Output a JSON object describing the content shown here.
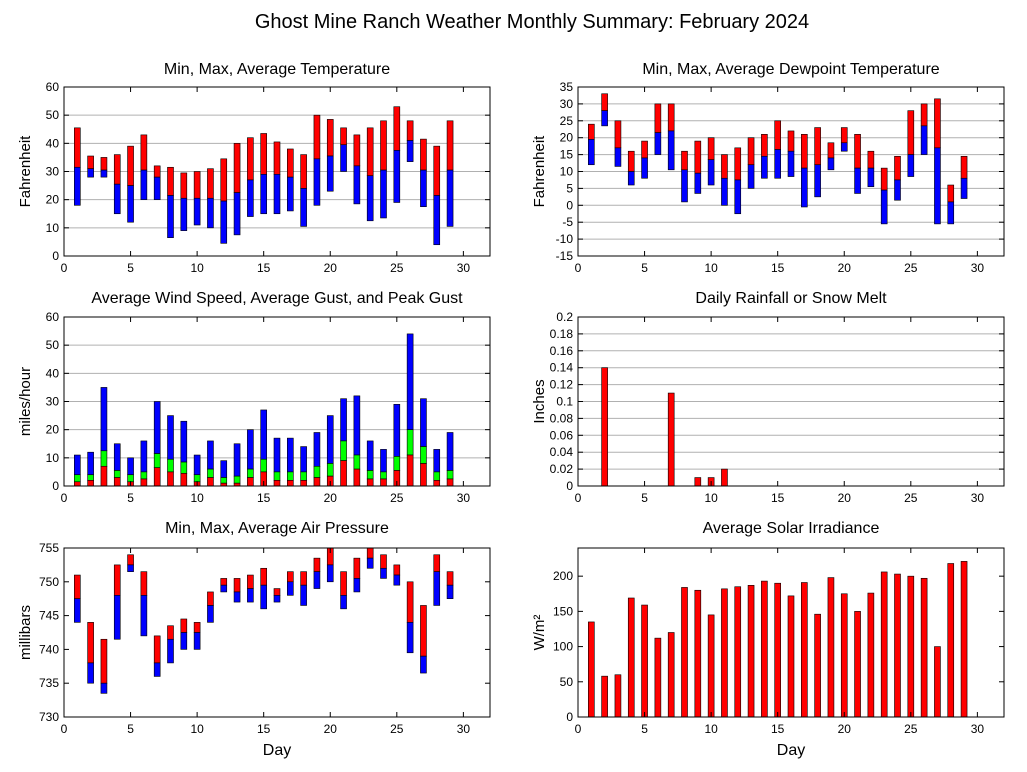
{
  "page_title": "Ghost Mine Ranch Weather Monthly Summary: February 2024",
  "colors": {
    "red": "#ff0000",
    "blue": "#0000ff",
    "green": "#00ff00",
    "frame": "#000000",
    "grid": "#b0b0b0"
  },
  "chart_data": [
    {
      "id": "temp",
      "type": "bar",
      "title": "Min, Max, Average Temperature",
      "xlabel": "",
      "ylabel": "Fahrenheit",
      "xlim": [
        0,
        32
      ],
      "ylim": [
        0,
        60
      ],
      "xticks": [
        0,
        5,
        10,
        15,
        20,
        25,
        30
      ],
      "yticks": [
        0,
        10,
        20,
        30,
        40,
        50,
        60
      ],
      "grid": true,
      "style": "range",
      "x": [
        1,
        2,
        3,
        4,
        5,
        6,
        7,
        8,
        9,
        10,
        11,
        12,
        13,
        14,
        15,
        16,
        17,
        18,
        19,
        20,
        21,
        22,
        23,
        24,
        25,
        26,
        27,
        28,
        29
      ],
      "series": [
        {
          "name": "Max",
          "color": "#ff0000",
          "values": [
            45.5,
            35.5,
            35,
            36,
            39,
            43,
            32,
            31.5,
            29.5,
            30,
            31,
            34.5,
            40,
            42,
            43.5,
            40.5,
            38,
            36,
            50,
            48.5,
            45.5,
            43,
            45.5,
            48,
            53,
            48,
            41.5,
            39,
            48
          ]
        },
        {
          "name": "Average",
          "color": "#0000ff",
          "values": [
            31.5,
            31,
            30.5,
            25.5,
            25,
            30.5,
            28,
            21.5,
            20.5,
            20.5,
            20.5,
            19.5,
            22.5,
            27,
            29,
            29,
            28,
            24,
            34.5,
            35.5,
            39.5,
            32,
            28.5,
            30.5,
            37.5,
            41,
            30.5,
            21.5,
            30.5
          ]
        },
        {
          "name": "Min",
          "color": "#0000ff",
          "values": [
            18,
            28,
            28,
            15,
            12,
            20,
            20,
            6.5,
            9,
            11,
            10,
            4.5,
            7.5,
            14,
            15,
            15,
            16,
            10.5,
            18,
            23,
            30,
            18.5,
            12.5,
            13.5,
            19,
            33.5,
            17.5,
            4,
            10.5
          ]
        }
      ]
    },
    {
      "id": "dew",
      "type": "bar",
      "title": "Min, Max, Average Dewpoint Temperature",
      "xlabel": "",
      "ylabel": "Fahrenheit",
      "xlim": [
        0,
        32
      ],
      "ylim": [
        -15,
        35
      ],
      "xticks": [
        0,
        5,
        10,
        15,
        20,
        25,
        30
      ],
      "yticks": [
        -15,
        -10,
        -5,
        0,
        5,
        10,
        15,
        20,
        25,
        30,
        35
      ],
      "grid": true,
      "style": "range",
      "x": [
        1,
        2,
        3,
        4,
        5,
        6,
        7,
        8,
        9,
        10,
        11,
        12,
        13,
        14,
        15,
        16,
        17,
        18,
        19,
        20,
        21,
        22,
        23,
        24,
        25,
        26,
        27,
        28,
        29
      ],
      "series": [
        {
          "name": "Max",
          "color": "#ff0000",
          "values": [
            24,
            33,
            25,
            16,
            19,
            30,
            30,
            16,
            19,
            20,
            15,
            17,
            20,
            21,
            25,
            22,
            21,
            23,
            18.5,
            23,
            21,
            16,
            11,
            14.5,
            28,
            30,
            31.5,
            6,
            14.5
          ]
        },
        {
          "name": "Average",
          "color": "#0000ff",
          "values": [
            19.5,
            28,
            17,
            10,
            14,
            21.5,
            22,
            10.5,
            9.5,
            13.5,
            8,
            7.5,
            12,
            14.5,
            16.5,
            16,
            11,
            12,
            14,
            18.5,
            11,
            11,
            4.5,
            7.5,
            15,
            23.5,
            17,
            1,
            8
          ]
        },
        {
          "name": "Min",
          "color": "#0000ff",
          "values": [
            12,
            23.5,
            11.5,
            6,
            8,
            15,
            10.5,
            1,
            3.5,
            6,
            0,
            -2.5,
            5,
            8,
            8,
            8.5,
            -0.5,
            2.5,
            10.5,
            16,
            3.5,
            5.5,
            -5.5,
            1.5,
            8.5,
            15,
            -5.5,
            -5.5,
            2
          ]
        }
      ]
    },
    {
      "id": "wind",
      "type": "bar",
      "title": "Average Wind Speed, Average Gust, and Peak Gust",
      "xlabel": "",
      "ylabel": "miles/hour",
      "xlim": [
        0,
        32
      ],
      "ylim": [
        0,
        60
      ],
      "xticks": [
        0,
        5,
        10,
        15,
        20,
        25,
        30
      ],
      "yticks": [
        0,
        10,
        20,
        30,
        40,
        50,
        60
      ],
      "grid": true,
      "style": "stack",
      "x": [
        1,
        2,
        3,
        4,
        5,
        6,
        7,
        8,
        9,
        10,
        11,
        12,
        13,
        14,
        15,
        16,
        17,
        18,
        19,
        20,
        21,
        22,
        23,
        24,
        25,
        26,
        27,
        28,
        29
      ],
      "series": [
        {
          "name": "Peak Gust",
          "color": "#0000ff",
          "values": [
            11,
            12,
            35,
            15,
            10,
            16,
            30,
            25,
            23,
            11,
            16,
            9,
            15,
            20,
            27,
            17,
            17,
            14,
            19,
            25,
            31,
            32,
            16,
            13,
            29,
            54,
            31,
            13,
            19
          ]
        },
        {
          "name": "Average Gust",
          "color": "#00ff00",
          "values": [
            4,
            4,
            12.5,
            5.5,
            4,
            5,
            11.5,
            9.5,
            8.5,
            4,
            6,
            3,
            3.5,
            6,
            9.5,
            5,
            5,
            5,
            7,
            8,
            16,
            11,
            5.5,
            5,
            10.5,
            20,
            14,
            5,
            5.5
          ]
        },
        {
          "name": "Average Wind Speed",
          "color": "#ff0000",
          "values": [
            1.5,
            2,
            7,
            3,
            1.5,
            2.5,
            6.5,
            5,
            4.5,
            1.5,
            3,
            1,
            1,
            3,
            5,
            2,
            2,
            2,
            3,
            3.5,
            9,
            6,
            2.5,
            2.5,
            5.5,
            11,
            8,
            2,
            2.5
          ]
        }
      ]
    },
    {
      "id": "rain",
      "type": "bar",
      "title": "Daily Rainfall or Snow Melt",
      "xlabel": "",
      "ylabel": "Inches",
      "xlim": [
        0,
        32
      ],
      "ylim": [
        0,
        0.2
      ],
      "xticks": [
        0,
        5,
        10,
        15,
        20,
        25,
        30
      ],
      "yticks": [
        0,
        0.02,
        0.04,
        0.06,
        0.08,
        0.1,
        0.12,
        0.14,
        0.16,
        0.18,
        0.2
      ],
      "grid": true,
      "style": "simple",
      "x": [
        2,
        7,
        9,
        10,
        11
      ],
      "series": [
        {
          "name": "Rainfall",
          "color": "#ff0000",
          "values": [
            0.14,
            0.11,
            0.01,
            0.01,
            0.02
          ]
        }
      ]
    },
    {
      "id": "press",
      "type": "bar",
      "title": "Min, Max, Average Air Pressure",
      "xlabel": "Day",
      "ylabel": "millibars",
      "xlim": [
        0,
        32
      ],
      "ylim": [
        730,
        755
      ],
      "xticks": [
        0,
        5,
        10,
        15,
        20,
        25,
        30
      ],
      "yticks": [
        730,
        735,
        740,
        745,
        750,
        755
      ],
      "grid": false,
      "style": "range",
      "x": [
        1,
        2,
        3,
        4,
        5,
        6,
        7,
        8,
        9,
        10,
        11,
        12,
        13,
        14,
        15,
        16,
        17,
        18,
        19,
        20,
        21,
        22,
        23,
        24,
        25,
        26,
        27,
        28,
        29
      ],
      "series": [
        {
          "name": "Max",
          "color": "#ff0000",
          "values": [
            751,
            744,
            741.5,
            752.5,
            754,
            751.5,
            742,
            743.5,
            744.5,
            744,
            748.5,
            750.5,
            750.5,
            751,
            752,
            749,
            751.5,
            751.5,
            753.5,
            755,
            751.5,
            753.5,
            755,
            754,
            752.5,
            750,
            746.5,
            754,
            751.5
          ]
        },
        {
          "name": "Average",
          "color": "#0000ff",
          "values": [
            747.5,
            738,
            735,
            748,
            752.5,
            748,
            738,
            741.5,
            742.5,
            742.5,
            746.5,
            749.5,
            748.5,
            749,
            749.5,
            748,
            750,
            749.5,
            751.5,
            752.5,
            748,
            750.5,
            753.5,
            752,
            751,
            744,
            739,
            751.5,
            749.5
          ]
        },
        {
          "name": "Min",
          "color": "#0000ff",
          "values": [
            744,
            735,
            733.5,
            741.5,
            751.5,
            742,
            736,
            738,
            740,
            740,
            744,
            748.5,
            747,
            747,
            746,
            747,
            748,
            746.5,
            749,
            750,
            746,
            748.5,
            752,
            750.5,
            749.5,
            739.5,
            736.5,
            746.5,
            747.5
          ]
        }
      ]
    },
    {
      "id": "solar",
      "type": "bar",
      "title": "Average Solar Irradiance",
      "xlabel": "Day",
      "ylabel": "W/m²",
      "xlim": [
        0,
        32
      ],
      "ylim": [
        0,
        240
      ],
      "xticks": [
        0,
        5,
        10,
        15,
        20,
        25,
        30
      ],
      "yticks": [
        0,
        50,
        100,
        150,
        200
      ],
      "grid": false,
      "style": "simple",
      "x": [
        1,
        2,
        3,
        4,
        5,
        6,
        7,
        8,
        9,
        10,
        11,
        12,
        13,
        14,
        15,
        16,
        17,
        18,
        19,
        20,
        21,
        22,
        23,
        24,
        25,
        26,
        27,
        28,
        29
      ],
      "series": [
        {
          "name": "Average Solar Irradiance",
          "color": "#ff0000",
          "values": [
            135,
            58,
            60,
            169,
            159,
            112,
            120,
            184,
            180,
            145,
            182,
            185,
            187,
            193,
            190,
            172,
            191,
            146,
            198,
            175,
            150,
            176,
            206,
            203,
            200,
            197,
            100,
            218,
            221
          ]
        }
      ]
    }
  ]
}
